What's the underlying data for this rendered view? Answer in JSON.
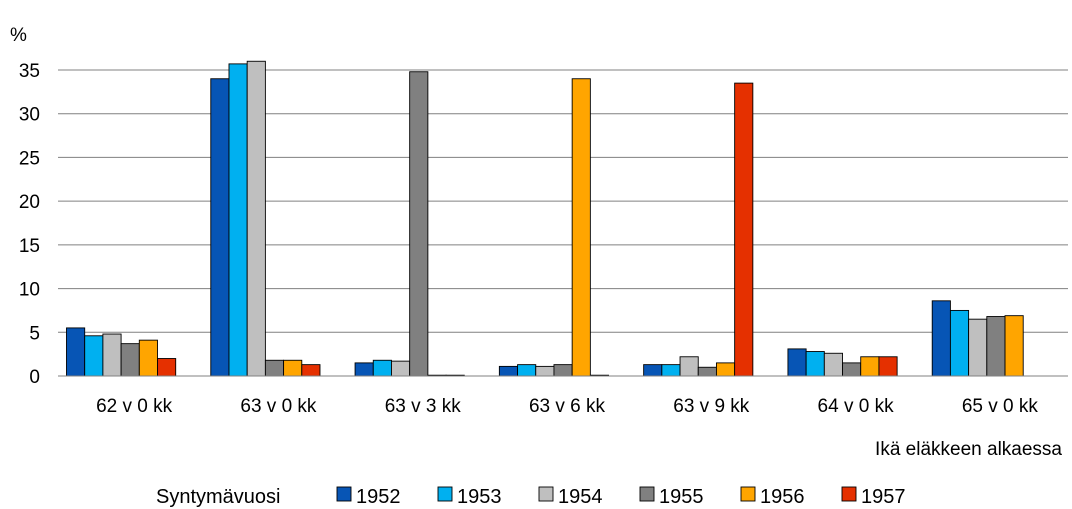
{
  "chart_data": {
    "type": "bar",
    "ylabel": "%",
    "xlabel": "Ikä eläkkeen alkaessa",
    "ylim": [
      0,
      35
    ],
    "yticks": [
      0,
      5,
      10,
      15,
      20,
      25,
      30,
      35
    ],
    "grid": true,
    "legend_position": "bottom",
    "legend_title": "Syntymävuosi",
    "categories": [
      "62 v 0 kk",
      "63 v 0 kk",
      "63 v 3 kk",
      "63 v 6 kk",
      "63 v 9 kk",
      "64 v 0 kk",
      "65 v 0 kk"
    ],
    "series": [
      {
        "name": "1952",
        "color": "#0755B5",
        "values": [
          5.5,
          34.0,
          1.5,
          1.1,
          1.3,
          3.1,
          8.6
        ]
      },
      {
        "name": "1953",
        "color": "#00B0F0",
        "values": [
          4.6,
          35.7,
          1.8,
          1.3,
          1.3,
          2.8,
          7.5
        ]
      },
      {
        "name": "1954",
        "color": "#BFBFBF",
        "values": [
          4.8,
          36.0,
          1.7,
          1.1,
          2.2,
          2.6,
          6.5
        ]
      },
      {
        "name": "1955",
        "color": "#808080",
        "values": [
          3.7,
          1.8,
          34.8,
          1.3,
          1.0,
          1.5,
          6.8
        ]
      },
      {
        "name": "1956",
        "color": "#FFA500",
        "values": [
          4.1,
          1.8,
          0.05,
          34.0,
          1.5,
          2.2,
          6.9
        ]
      },
      {
        "name": "1957",
        "color": "#E53000",
        "values": [
          2.0,
          1.3,
          0.05,
          0.05,
          33.5,
          2.2,
          null
        ]
      }
    ]
  }
}
